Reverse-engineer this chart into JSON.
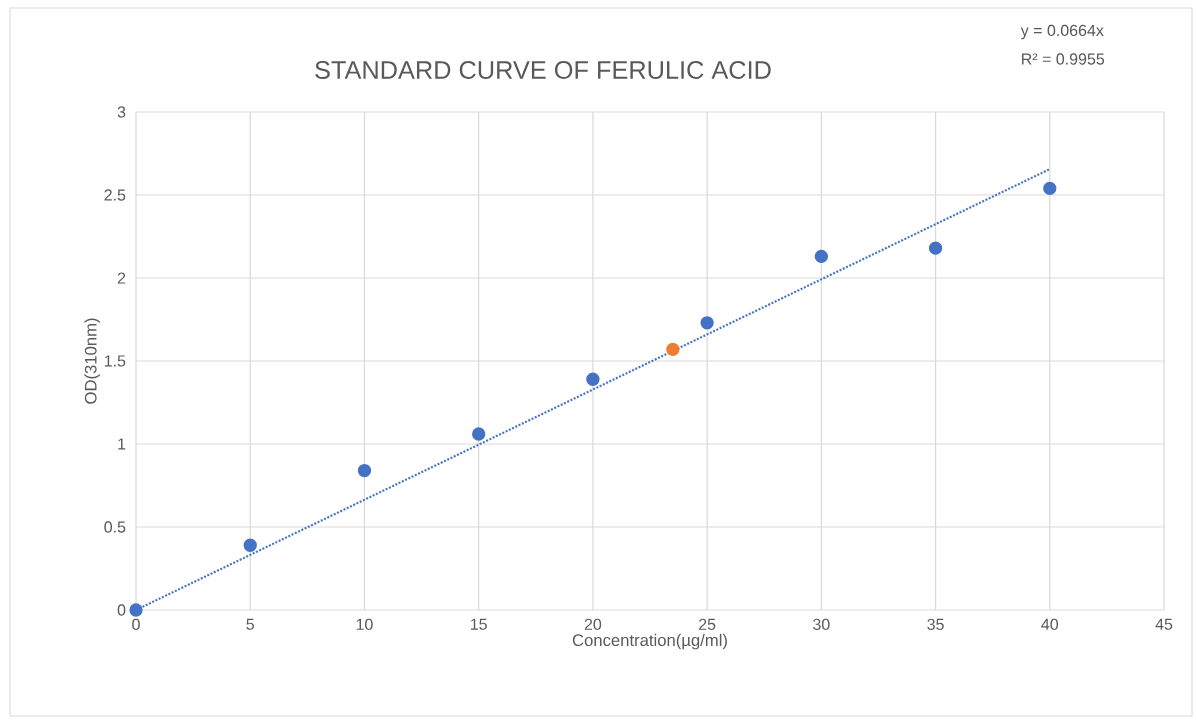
{
  "chart_data": {
    "type": "scatter",
    "title": "STANDARD CURVE OF FERULIC ACID",
    "xlabel": "Concentration(µg/ml)",
    "ylabel": "OD(310nm)",
    "annotations": [
      "y = 0.0664x",
      "R² = 0.9955"
    ],
    "series": [
      {
        "color": "#4472c4",
        "marker": "circle",
        "x": [
          0,
          5,
          10,
          15,
          20,
          25,
          30,
          35,
          40
        ],
        "values": [
          0,
          0.39,
          0.84,
          1.06,
          1.39,
          1.73,
          2.13,
          2.18,
          2.54
        ]
      },
      {
        "color": "#ed7d31",
        "marker": "circle",
        "x": [
          23.5
        ],
        "values": [
          1.57
        ]
      },
      {
        "type": "line",
        "color": "#4472c4",
        "marker": "none",
        "line_style": "dotted",
        "x": [
          0,
          40
        ],
        "values": [
          0,
          2.656
        ]
      }
    ],
    "xlim": [
      0,
      45
    ],
    "ylim": [
      0,
      3
    ],
    "xticks": [
      0,
      5,
      10,
      15,
      20,
      25,
      30,
      35,
      40,
      45
    ],
    "yticks": [
      0,
      0.5,
      1,
      1.5,
      2,
      2.5,
      3
    ],
    "grid": true
  }
}
